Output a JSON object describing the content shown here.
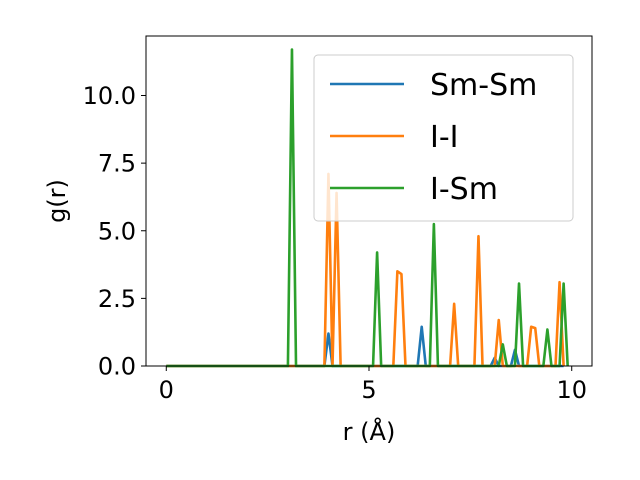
{
  "chart_data": {
    "type": "line",
    "title": "",
    "xlabel": "r (Å)",
    "ylabel": "g(r)",
    "xlim": [
      -0.5,
      10.5
    ],
    "ylim": [
      0,
      12.2
    ],
    "xticks": [
      0,
      5,
      10
    ],
    "xtick_labels": [
      "0",
      "5",
      "10"
    ],
    "yticks": [
      0,
      2.5,
      5,
      7.5,
      10
    ],
    "ytick_labels": [
      "0.0",
      "2.5",
      "5.0",
      "7.5",
      "10.0"
    ],
    "grid": false,
    "legend_position": "top-right",
    "series": [
      {
        "name": "Sm-Sm",
        "color": "#1f77b4",
        "x": [
          0,
          3.9,
          4.0,
          4.1,
          6.2,
          6.3,
          6.4,
          8.0,
          8.1,
          8.2,
          8.5,
          8.6,
          8.7,
          9.8
        ],
        "y": [
          0,
          0,
          1.2,
          0,
          0,
          1.45,
          0,
          0,
          0.3,
          0,
          0,
          0.6,
          0,
          0
        ]
      },
      {
        "name": "I-I",
        "color": "#ff7f0e",
        "x": [
          0,
          3.9,
          4.0,
          4.1,
          4.2,
          4.3,
          5.6,
          5.7,
          5.8,
          5.9,
          7.0,
          7.1,
          7.2,
          7.6,
          7.7,
          7.8,
          8.1,
          8.2,
          8.3,
          8.9,
          9.0,
          9.1,
          9.2,
          9.6,
          9.7,
          9.8
        ],
        "y": [
          0,
          0,
          7.1,
          0,
          6.4,
          0,
          0,
          3.5,
          3.4,
          0,
          0,
          2.3,
          0,
          0,
          4.8,
          0,
          0,
          1.7,
          0,
          0,
          1.45,
          1.4,
          0,
          0,
          3.1,
          0
        ]
      },
      {
        "name": "I-Sm",
        "color": "#2ca02c",
        "x": [
          0,
          3.0,
          3.1,
          3.2,
          5.1,
          5.2,
          5.3,
          6.5,
          6.6,
          6.7,
          8.2,
          8.3,
          8.4,
          8.6,
          8.7,
          8.8,
          9.3,
          9.4,
          9.5,
          9.7,
          9.8,
          9.9
        ],
        "y": [
          0,
          0,
          11.7,
          0,
          0,
          4.2,
          0,
          0,
          5.25,
          0,
          0,
          0.8,
          0,
          0,
          3.05,
          0,
          0,
          1.35,
          0,
          0,
          3.05,
          0
        ]
      }
    ]
  }
}
